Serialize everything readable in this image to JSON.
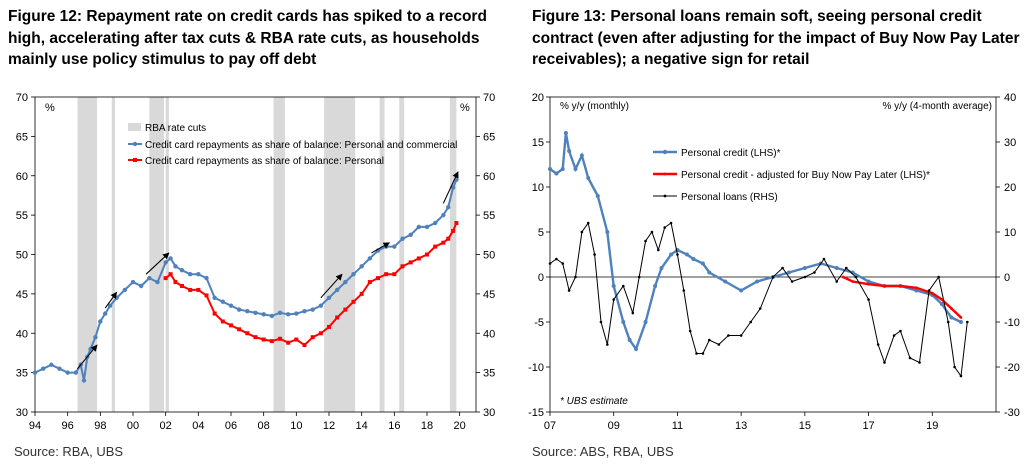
{
  "colors": {
    "blue": "#4f81bd",
    "red": "#ff0000",
    "black": "#000000",
    "shade": "#d9d9d9"
  },
  "chart_data": [
    {
      "type": "line",
      "title": "Figure 12: Repayment rate on credit cards has spiked to a record high, accelerating after tax cuts & RBA rate cuts, as households mainly use policy stimulus to pay off debt",
      "source": "Source:  RBA, UBS",
      "ylabel_left": "%",
      "ylabel_right": "%",
      "ylim": [
        30,
        70
      ],
      "yticks": [
        "30",
        "35",
        "40",
        "45",
        "50",
        "55",
        "60",
        "65",
        "70"
      ],
      "xlim": [
        1994,
        2021
      ],
      "xticks": [
        "94",
        "96",
        "98",
        "00",
        "02",
        "04",
        "06",
        "08",
        "10",
        "12",
        "14",
        "16",
        "18",
        "20"
      ],
      "shaded_label": "RBA rate cuts",
      "shaded_periods": [
        [
          1996.6,
          1997.8
        ],
        [
          1998.7,
          1998.9
        ],
        [
          2001.0,
          2001.9
        ],
        [
          2002.0,
          2002.2
        ],
        [
          2008.6,
          2009.3
        ],
        [
          2011.7,
          2013.6
        ],
        [
          2015.1,
          2015.4
        ],
        [
          2016.3,
          2016.6
        ],
        [
          2019.4,
          2019.8
        ]
      ],
      "series": [
        {
          "name": "Credit card repayments as share of balance: Personal and commercial",
          "color": "#4f81bd",
          "x": [
            1994.0,
            1994.5,
            1995.0,
            1995.5,
            1996.0,
            1996.5,
            1996.8,
            1997.0,
            1997.2,
            1997.4,
            1997.7,
            1998.0,
            1998.3,
            1998.6,
            1999.0,
            1999.5,
            2000.0,
            2000.5,
            2001.0,
            2001.5,
            2002.0,
            2002.3,
            2002.6,
            2003.0,
            2003.5,
            2004.0,
            2004.5,
            2005.0,
            2005.5,
            2006.0,
            2006.5,
            2007.0,
            2007.5,
            2008.0,
            2008.5,
            2009.0,
            2009.5,
            2010.0,
            2010.5,
            2011.0,
            2011.5,
            2012.0,
            2012.5,
            2013.0,
            2013.5,
            2014.0,
            2014.5,
            2015.0,
            2015.5,
            2016.0,
            2016.5,
            2017.0,
            2017.5,
            2018.0,
            2018.5,
            2019.0,
            2019.3,
            2019.6,
            2019.8
          ],
          "values": [
            35.0,
            35.5,
            36.0,
            35.5,
            35.0,
            35.0,
            36.0,
            34.0,
            37.0,
            38.0,
            39.5,
            41.5,
            42.5,
            43.5,
            44.5,
            45.5,
            46.5,
            46.0,
            47.0,
            46.5,
            49.0,
            49.5,
            48.5,
            48.0,
            47.5,
            47.5,
            47.0,
            44.5,
            44.0,
            43.5,
            43.0,
            42.8,
            42.6,
            42.4,
            42.2,
            42.6,
            42.4,
            42.5,
            42.8,
            43.0,
            43.5,
            44.5,
            45.5,
            46.5,
            47.5,
            48.5,
            49.5,
            50.5,
            51.0,
            51.0,
            52.0,
            52.5,
            53.5,
            53.5,
            54.0,
            55.0,
            56.0,
            58.5,
            59.5
          ]
        },
        {
          "name": "Credit card repayments as share of balance: Personal",
          "color": "#ff0000",
          "x": [
            2002.0,
            2002.3,
            2002.6,
            2003.0,
            2003.5,
            2004.0,
            2004.5,
            2005.0,
            2005.5,
            2006.0,
            2006.5,
            2007.0,
            2007.5,
            2008.0,
            2008.5,
            2009.0,
            2009.5,
            2010.0,
            2010.5,
            2011.0,
            2011.5,
            2012.0,
            2012.5,
            2013.0,
            2013.5,
            2014.0,
            2014.5,
            2015.0,
            2015.5,
            2016.0,
            2016.5,
            2017.0,
            2017.5,
            2018.0,
            2018.5,
            2019.0,
            2019.3,
            2019.6,
            2019.8
          ],
          "values": [
            47.0,
            47.5,
            46.5,
            46.0,
            45.5,
            45.5,
            44.8,
            42.5,
            41.5,
            41.0,
            40.5,
            40.0,
            39.5,
            39.2,
            39.0,
            39.3,
            38.8,
            39.2,
            38.5,
            39.5,
            40.0,
            40.8,
            42.0,
            43.0,
            44.0,
            45.0,
            46.5,
            47.0,
            47.5,
            47.5,
            48.5,
            49.0,
            49.5,
            50.0,
            51.0,
            51.5,
            52.0,
            53.0,
            54.0
          ]
        }
      ]
    },
    {
      "type": "line",
      "title": "Figure 13: Personal loans remain soft, seeing personal credit contract (even after adjusting for the impact of Buy Now Pay Later receivables); a negative sign for retail",
      "source": "Source:  ABS, RBA, UBS",
      "ylabel_left": "% y/y (monthly)",
      "ylabel_right": "% y/y (4-month average)",
      "ylim_left": [
        -15,
        20
      ],
      "ylim_right": [
        -30,
        40
      ],
      "yticks_left": [
        "-15",
        "-10",
        "-5",
        "0",
        "5",
        "10",
        "15",
        "20"
      ],
      "yticks_right": [
        "-30",
        "-20",
        "-10",
        "0",
        "10",
        "20",
        "30",
        "40"
      ],
      "xlim": [
        2007,
        2021
      ],
      "xticks": [
        "07",
        "09",
        "11",
        "13",
        "15",
        "17",
        "19"
      ],
      "note": "* UBS estimate",
      "series": [
        {
          "name": "Personal credit (LHS)*",
          "color": "#4f81bd",
          "axis": "left",
          "x": [
            2007.0,
            2007.2,
            2007.4,
            2007.5,
            2007.6,
            2007.8,
            2008.0,
            2008.2,
            2008.5,
            2008.8,
            2009.0,
            2009.3,
            2009.5,
            2009.7,
            2010.0,
            2010.3,
            2010.5,
            2010.8,
            2011.0,
            2011.3,
            2011.5,
            2011.8,
            2012.0,
            2012.5,
            2013.0,
            2013.5,
            2014.0,
            2014.5,
            2015.0,
            2015.5,
            2016.0,
            2016.5,
            2017.0,
            2017.5,
            2018.0,
            2018.5,
            2019.0,
            2019.3,
            2019.6,
            2019.9
          ],
          "values": [
            12.0,
            11.5,
            12.0,
            16.0,
            14.0,
            12.0,
            13.5,
            11.0,
            9.0,
            5.0,
            -1.0,
            -5.0,
            -7.0,
            -8.0,
            -5.0,
            -1.0,
            1.0,
            2.5,
            3.0,
            2.5,
            2.0,
            1.5,
            0.5,
            -0.5,
            -1.5,
            -0.5,
            0.0,
            0.5,
            1.0,
            1.5,
            1.0,
            0.5,
            -0.5,
            -1.0,
            -1.0,
            -1.5,
            -2.0,
            -3.0,
            -4.5,
            -5.0
          ]
        },
        {
          "name": "Personal credit - adjusted for Buy Now Pay Later (LHS)*",
          "color": "#ff0000",
          "axis": "left",
          "x": [
            2016.2,
            2016.5,
            2017.0,
            2017.5,
            2018.0,
            2018.5,
            2019.0,
            2019.3,
            2019.6,
            2019.9
          ],
          "values": [
            0.0,
            -0.5,
            -0.8,
            -1.0,
            -1.0,
            -1.2,
            -1.8,
            -2.5,
            -3.5,
            -4.5
          ]
        },
        {
          "name": "Personal loans (RHS)",
          "color": "#000000",
          "axis": "right",
          "x": [
            2007.0,
            2007.2,
            2007.4,
            2007.6,
            2007.8,
            2008.0,
            2008.2,
            2008.4,
            2008.6,
            2008.8,
            2009.0,
            2009.3,
            2009.6,
            2009.8,
            2010.0,
            2010.2,
            2010.4,
            2010.6,
            2010.8,
            2011.0,
            2011.2,
            2011.4,
            2011.6,
            2011.8,
            2012.0,
            2012.3,
            2012.6,
            2013.0,
            2013.3,
            2013.6,
            2014.0,
            2014.3,
            2014.6,
            2015.0,
            2015.3,
            2015.6,
            2016.0,
            2016.3,
            2016.6,
            2017.0,
            2017.3,
            2017.5,
            2017.8,
            2018.0,
            2018.3,
            2018.6,
            2018.9,
            2019.2,
            2019.5,
            2019.7,
            2019.9,
            2020.1
          ],
          "values": [
            3.0,
            4.0,
            3.0,
            -3.0,
            0.0,
            10.0,
            12.0,
            5.0,
            -10.0,
            -15.0,
            -5.0,
            -2.0,
            -8.0,
            0.0,
            8.0,
            10.0,
            6.0,
            11.0,
            12.0,
            5.0,
            -3.0,
            -12.0,
            -17.0,
            -17.0,
            -14.0,
            -15.0,
            -13.0,
            -13.0,
            -10.0,
            -7.0,
            0.0,
            2.0,
            -1.0,
            0.0,
            1.0,
            4.0,
            -1.0,
            2.0,
            0.0,
            -5.0,
            -15.0,
            -19.0,
            -13.0,
            -12.0,
            -18.0,
            -19.0,
            -3.0,
            0.0,
            -10.0,
            -20.0,
            -22.0,
            -10.0
          ]
        }
      ]
    }
  ]
}
